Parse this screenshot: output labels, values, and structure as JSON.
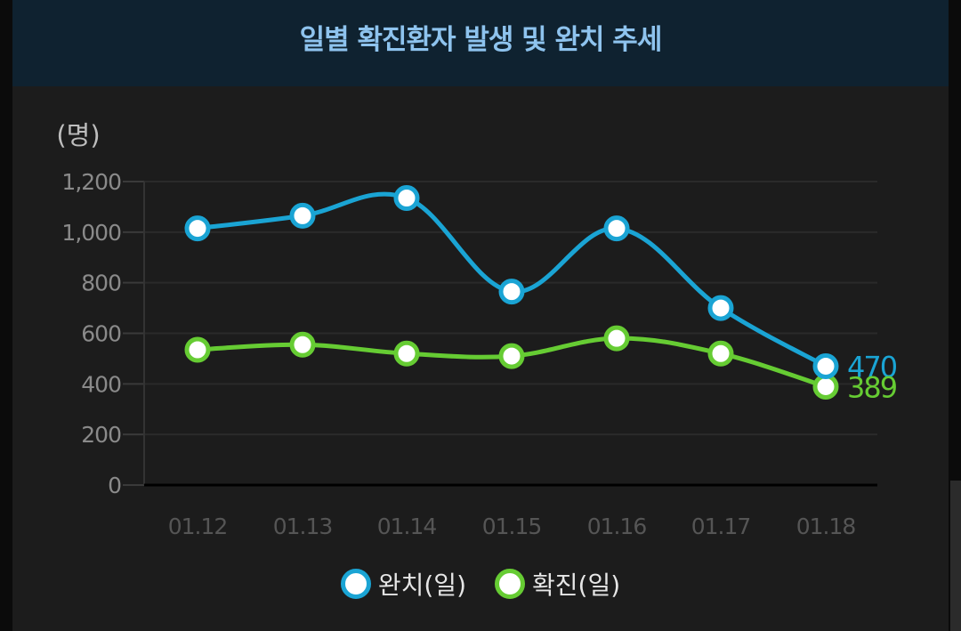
{
  "title": "일별 확진환자 발생 및 완치 추세",
  "chart_data": {
    "type": "line",
    "title": "일별 확진환자 발생 및 완치 추세",
    "ylabel": "(명)",
    "xlabel": "",
    "categories": [
      "01.12",
      "01.13",
      "01.14",
      "01.15",
      "01.16",
      "01.17",
      "01.18"
    ],
    "yticks": [
      "0",
      "200",
      "400",
      "600",
      "800",
      "1,000",
      "1,200"
    ],
    "ylim": [
      0,
      1200
    ],
    "grid": true,
    "legend_position": "bottom",
    "series": [
      {
        "name": "완치(일)",
        "color": "#1aa4d4",
        "values": [
          1015,
          1065,
          1135,
          765,
          1015,
          700,
          470
        ],
        "end_label": "470"
      },
      {
        "name": "확진(일)",
        "color": "#66cc33",
        "values": [
          535,
          555,
          520,
          510,
          580,
          520,
          389
        ],
        "end_label": "389"
      }
    ]
  },
  "colors": {
    "header_bg": "#0f2230",
    "panel_bg": "#1c1c1c",
    "title": "#8ec3ee"
  }
}
